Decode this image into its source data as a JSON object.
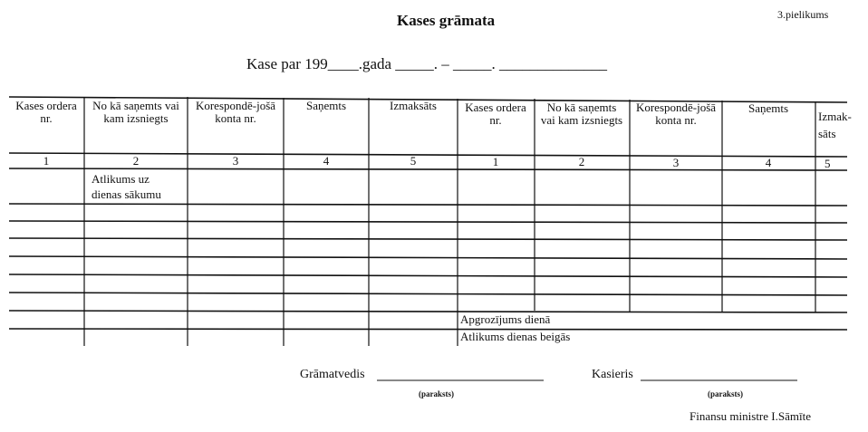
{
  "appendix": "3.pielikums",
  "title": "Kases grāmata",
  "subtitle": "Kase par 199____.gada _____. – _____. ______________",
  "table": {
    "headers": [
      "Kases ordera nr.",
      "No kā saņemts vai kam izsniegts",
      "Korespondē-jošā konta nr.",
      "Saņemts",
      "Izmaksāts",
      "Kases ordera nr.",
      "No kā saņemts vai kam izsniegts",
      "Korespondē-jošā konta nr.",
      "Saņemts",
      "Izmak-sāts"
    ],
    "numbers": [
      "1",
      "2",
      "3",
      "4",
      "5",
      "1",
      "2",
      "3",
      "4",
      "5"
    ],
    "opening_balance": "Atlikums uz dienas sākumu",
    "daily_turnover": "Apgrozījums dienā",
    "closing_balance": "Atlikums dienas beigās"
  },
  "signatures": {
    "accountant": "Grāmatvedis",
    "cashier": "Kasieris",
    "signature_hint": "(paraksts)"
  },
  "footer": "Finansu ministre I.Sāmīte"
}
